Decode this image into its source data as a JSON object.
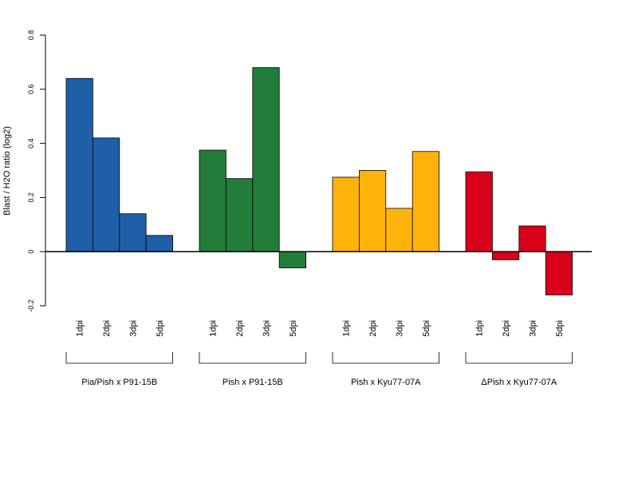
{
  "chart_data": {
    "type": "bar",
    "title": "",
    "ylabel": "Blast / H2O ratio (log2)",
    "ylim": [
      -0.2,
      0.8
    ],
    "yticks": [
      -0.2,
      0,
      0.2,
      0.4,
      0.6,
      0.8
    ],
    "ytick_labels": [
      "-0.2",
      "0",
      "0.2",
      "0.4",
      "0.6",
      "0.8"
    ],
    "categories": [
      "1dpi",
      "2dpi",
      "3dpi",
      "5dpi"
    ],
    "groups": [
      {
        "name": "Pia/Pish x P91-15B",
        "color": "#1f5fa8",
        "values": [
          0.64,
          0.42,
          0.14,
          0.06
        ]
      },
      {
        "name": "Pish x P91-15B",
        "color": "#227c3a",
        "values": [
          0.375,
          0.27,
          0.68,
          -0.06
        ]
      },
      {
        "name": "Pish x Kyu77-07A",
        "color": "#ffb30a",
        "values": [
          0.275,
          0.3,
          0.16,
          0.37
        ]
      },
      {
        "name": "ΔPish x Kyu77-07A",
        "color": "#d9001a",
        "values": [
          0.295,
          -0.03,
          0.095,
          -0.16
        ]
      }
    ],
    "grid": false,
    "legend": "none"
  }
}
